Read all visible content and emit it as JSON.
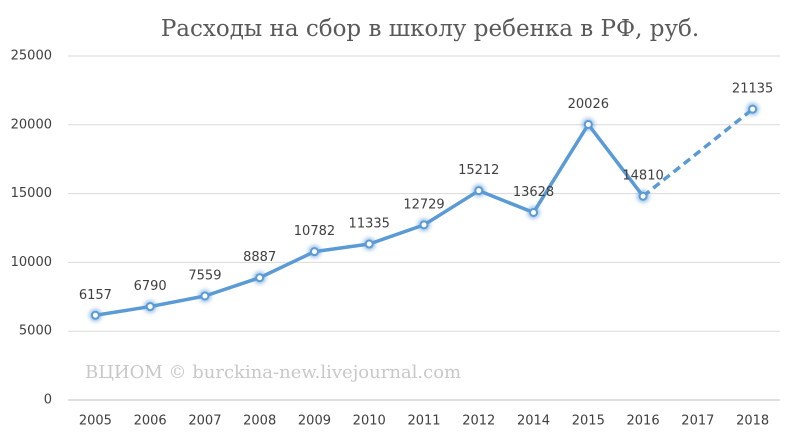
{
  "chart_data": {
    "type": "line",
    "title": "Расходы на сбор в школу ребенка в РФ, руб.",
    "annotation": "ВЦИОМ © burckina-new.livejournal.com",
    "categories": [
      "2005",
      "2006",
      "2007",
      "2008",
      "2009",
      "2010",
      "2011",
      "2012",
      "2014",
      "2015",
      "2016",
      "2017",
      "2018"
    ],
    "values": [
      6157,
      6790,
      7559,
      8887,
      10782,
      11335,
      12729,
      15212,
      13628,
      20026,
      14810,
      null,
      21135
    ],
    "color": "#5b9bd5",
    "ylim": [
      0,
      25000
    ],
    "yticks": [
      0,
      5000,
      10000,
      15000,
      20000,
      25000
    ],
    "grid": true
  }
}
